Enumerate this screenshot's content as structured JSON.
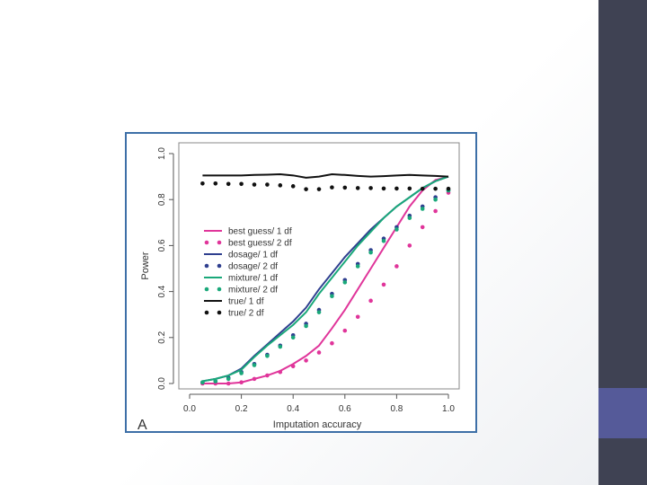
{
  "slide": {
    "colors": {
      "sidebar": "#3f4253",
      "sidebar_accent": "#555a99",
      "frame": "#3d6fa7"
    }
  },
  "chart_data": {
    "type": "line",
    "panel_label": "A",
    "xlabel": "Imputation accuracy",
    "ylabel": "Power",
    "xlim": [
      0.0,
      1.0
    ],
    "ylim": [
      0.0,
      1.0
    ],
    "xticks": [
      "0.0",
      "0.2",
      "0.4",
      "0.6",
      "0.8",
      "1.0"
    ],
    "yticks": [
      "0.0",
      "0.2",
      "0.4",
      "0.6",
      "0.8",
      "1.0"
    ],
    "grid": false,
    "legend_position": "left-middle",
    "x": [
      0.05,
      0.1,
      0.15,
      0.2,
      0.25,
      0.3,
      0.35,
      0.4,
      0.45,
      0.5,
      0.55,
      0.6,
      0.65,
      0.7,
      0.75,
      0.8,
      0.85,
      0.9,
      0.95,
      1.0
    ],
    "series": [
      {
        "name": "best guess/ 1 df",
        "color": "#e0359a",
        "style": "line",
        "values": [
          0.0,
          0.0,
          0.0,
          0.005,
          0.02,
          0.035,
          0.055,
          0.085,
          0.12,
          0.165,
          0.24,
          0.32,
          0.41,
          0.5,
          0.59,
          0.68,
          0.77,
          0.84,
          0.885,
          0.9
        ]
      },
      {
        "name": "best guess/ 2 df",
        "color": "#e0359a",
        "style": "dots",
        "values": [
          0.0,
          0.0,
          0.0,
          0.005,
          0.02,
          0.035,
          0.05,
          0.075,
          0.1,
          0.135,
          0.175,
          0.23,
          0.29,
          0.36,
          0.43,
          0.51,
          0.6,
          0.68,
          0.75,
          0.83
        ]
      },
      {
        "name": "dosage/ 1 df",
        "color": "#2f3f8f",
        "style": "line",
        "values": [
          0.01,
          0.02,
          0.035,
          0.065,
          0.12,
          0.17,
          0.22,
          0.27,
          0.33,
          0.41,
          0.48,
          0.55,
          0.61,
          0.67,
          0.72,
          0.77,
          0.81,
          0.85,
          0.88,
          0.9
        ]
      },
      {
        "name": "dosage/ 2 df",
        "color": "#2f3f8f",
        "style": "dots",
        "values": [
          0.005,
          0.01,
          0.025,
          0.05,
          0.085,
          0.125,
          0.165,
          0.21,
          0.26,
          0.32,
          0.39,
          0.45,
          0.52,
          0.58,
          0.63,
          0.68,
          0.73,
          0.77,
          0.81,
          0.84
        ]
      },
      {
        "name": "mixture/ 1 df",
        "color": "#1aa87a",
        "style": "line",
        "values": [
          0.01,
          0.02,
          0.035,
          0.06,
          0.115,
          0.165,
          0.21,
          0.255,
          0.31,
          0.39,
          0.46,
          0.53,
          0.6,
          0.66,
          0.72,
          0.77,
          0.81,
          0.85,
          0.88,
          0.9
        ]
      },
      {
        "name": "mixture/ 2 df",
        "color": "#1aa87a",
        "style": "dots",
        "values": [
          0.005,
          0.01,
          0.02,
          0.045,
          0.08,
          0.12,
          0.16,
          0.2,
          0.25,
          0.31,
          0.38,
          0.44,
          0.51,
          0.57,
          0.62,
          0.67,
          0.72,
          0.76,
          0.8,
          0.84
        ]
      },
      {
        "name": "true/ 1 df",
        "color": "#111111",
        "style": "line",
        "values": [
          0.905,
          0.905,
          0.905,
          0.905,
          0.907,
          0.908,
          0.91,
          0.905,
          0.895,
          0.9,
          0.91,
          0.907,
          0.903,
          0.9,
          0.902,
          0.905,
          0.907,
          0.905,
          0.903,
          0.9
        ]
      },
      {
        "name": "true/ 2 df",
        "color": "#111111",
        "style": "dots",
        "values": [
          0.87,
          0.87,
          0.868,
          0.868,
          0.865,
          0.865,
          0.862,
          0.858,
          0.845,
          0.845,
          0.853,
          0.852,
          0.85,
          0.85,
          0.848,
          0.848,
          0.848,
          0.847,
          0.847,
          0.847
        ]
      }
    ]
  }
}
